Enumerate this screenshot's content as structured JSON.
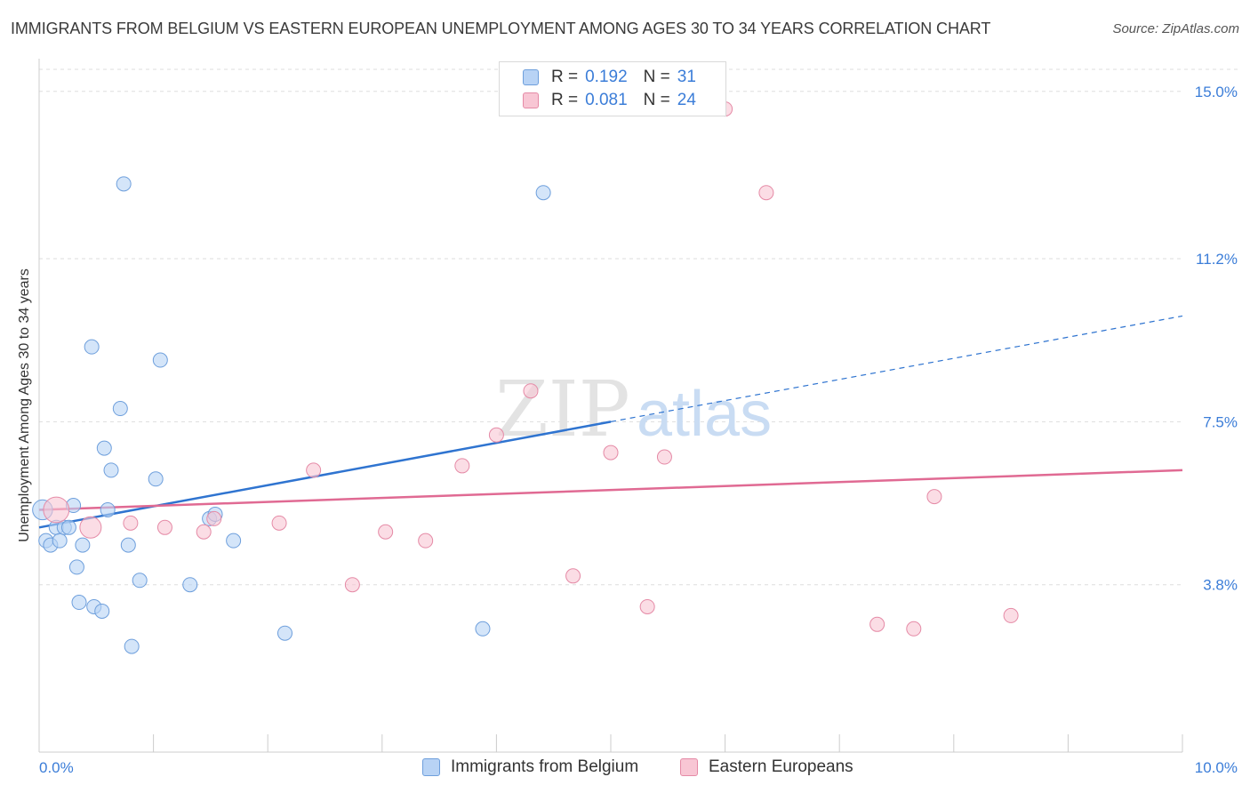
{
  "title": "IMMIGRANTS FROM BELGIUM VS EASTERN EUROPEAN UNEMPLOYMENT AMONG AGES 30 TO 34 YEARS CORRELATION CHART",
  "source": "Source: ZipAtlas.com",
  "watermark": {
    "zip": "ZIP",
    "atlas": "atlas"
  },
  "legend_top": [
    {
      "r_label": "R =",
      "r_value": "0.192",
      "n_label": "N =",
      "n_value": "31"
    },
    {
      "r_label": "R =",
      "r_value": "0.081",
      "n_label": "N =",
      "n_value": "24"
    }
  ],
  "legend_bottom": [
    {
      "label": "Immigrants from Belgium"
    },
    {
      "label": "Eastern Europeans"
    }
  ],
  "colors": {
    "blue_fill": "#b8d3f5",
    "blue_stroke": "#6e9fdc",
    "blue_line": "#2f74d0",
    "pink_fill": "#f8c6d4",
    "pink_stroke": "#e58aa6",
    "pink_line": "#e06a93",
    "tick_label": "#3b7dd8",
    "grid": "#dddddd"
  },
  "chart_data": {
    "type": "scatter",
    "title": "IMMIGRANTS FROM BELGIUM VS EASTERN EUROPEAN UNEMPLOYMENT AMONG AGES 30 TO 34 YEARS CORRELATION CHART",
    "xlabel": "",
    "ylabel": "Unemployment Among Ages 30 to 34 years",
    "xlim": [
      0,
      10
    ],
    "ylim": [
      0,
      15.5
    ],
    "x_tick_labels": [
      "0.0%",
      "10.0%"
    ],
    "y_ticks": [
      3.8,
      7.5,
      11.2,
      15.0
    ],
    "y_tick_labels": [
      "3.8%",
      "7.5%",
      "11.2%",
      "15.0%"
    ],
    "grid": true,
    "legend_position": "top-center",
    "series": [
      {
        "name": "Immigrants from Belgium",
        "color": "blue",
        "points": [
          [
            0.03,
            5.5,
            1.4
          ],
          [
            0.06,
            4.8,
            1
          ],
          [
            0.1,
            4.7,
            1
          ],
          [
            0.15,
            5.1,
            1
          ],
          [
            0.18,
            4.8,
            1
          ],
          [
            0.22,
            5.1,
            1
          ],
          [
            0.26,
            5.1,
            1
          ],
          [
            0.3,
            5.6,
            1
          ],
          [
            0.33,
            4.2,
            1
          ],
          [
            0.38,
            4.7,
            1
          ],
          [
            0.35,
            3.4,
            1
          ],
          [
            0.48,
            3.3,
            1
          ],
          [
            0.55,
            3.2,
            1
          ],
          [
            0.46,
            9.2,
            1
          ],
          [
            0.57,
            6.9,
            1
          ],
          [
            0.6,
            5.5,
            1
          ],
          [
            0.63,
            6.4,
            1
          ],
          [
            0.71,
            7.8,
            1
          ],
          [
            0.74,
            12.9,
            1
          ],
          [
            0.78,
            4.7,
            1
          ],
          [
            0.81,
            2.4,
            1
          ],
          [
            0.88,
            3.9,
            1
          ],
          [
            1.02,
            6.2,
            1
          ],
          [
            1.06,
            8.9,
            1
          ],
          [
            1.32,
            3.8,
            1
          ],
          [
            1.49,
            5.3,
            1
          ],
          [
            1.54,
            5.4,
            1
          ],
          [
            1.7,
            4.8,
            1
          ],
          [
            2.15,
            2.7,
            1
          ],
          [
            3.88,
            2.8,
            1
          ],
          [
            4.41,
            12.7,
            1
          ]
        ],
        "trend": {
          "x": [
            0,
            5.0
          ],
          "y": [
            5.1,
            7.5
          ],
          "dashed_to": [
            10,
            9.9
          ]
        }
      },
      {
        "name": "Eastern Europeans",
        "color": "pink",
        "points": [
          [
            0.15,
            5.5,
            1.8
          ],
          [
            0.45,
            5.1,
            1.5
          ],
          [
            0.8,
            5.2,
            1
          ],
          [
            1.1,
            5.1,
            1
          ],
          [
            1.44,
            5.0,
            1
          ],
          [
            1.53,
            5.3,
            1
          ],
          [
            2.1,
            5.2,
            1
          ],
          [
            2.4,
            6.4,
            1
          ],
          [
            2.74,
            3.8,
            1
          ],
          [
            3.03,
            5.0,
            1
          ],
          [
            3.38,
            4.8,
            1
          ],
          [
            3.7,
            6.5,
            1
          ],
          [
            4.0,
            7.2,
            1
          ],
          [
            4.3,
            8.2,
            1
          ],
          [
            4.67,
            4.0,
            1
          ],
          [
            5.0,
            6.8,
            1
          ],
          [
            5.32,
            3.3,
            1
          ],
          [
            5.47,
            6.7,
            1
          ],
          [
            6.0,
            14.6,
            1
          ],
          [
            6.36,
            12.7,
            1
          ],
          [
            7.33,
            2.9,
            1
          ],
          [
            7.65,
            2.8,
            1
          ],
          [
            7.83,
            5.8,
            1
          ],
          [
            8.5,
            3.1,
            1
          ]
        ],
        "trend": {
          "x": [
            0,
            10
          ],
          "y": [
            5.5,
            6.4
          ]
        }
      }
    ]
  }
}
